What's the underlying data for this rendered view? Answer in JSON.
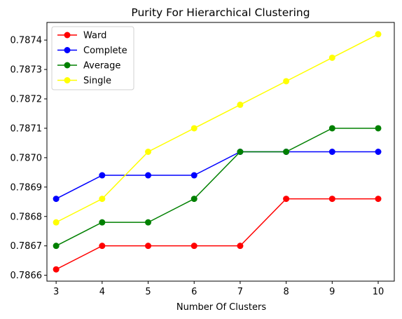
{
  "chart_data": {
    "type": "line",
    "title": "Purity For Hierarchical Clustering",
    "xlabel": "Number Of Clusters",
    "ylabel": "",
    "x": [
      3,
      4,
      5,
      6,
      7,
      8,
      9,
      10
    ],
    "xlim": [
      2.8,
      10.35
    ],
    "ylim": [
      0.78658,
      0.78746
    ],
    "xticks": [
      3,
      4,
      5,
      6,
      7,
      8,
      9,
      10
    ],
    "yticks": [
      0.7866,
      0.7867,
      0.7868,
      0.7869,
      0.787,
      0.7871,
      0.7872,
      0.7873,
      0.7874
    ],
    "ytick_labels": [
      "0.7866",
      "0.7867",
      "0.7868",
      "0.7869",
      "0.7870",
      "0.7871",
      "0.7872",
      "0.7873",
      "0.7874"
    ],
    "grid": false,
    "legend_position": "top-left",
    "series": [
      {
        "name": "Ward",
        "color": "#ff0000",
        "values": [
          0.78662,
          0.7867,
          0.7867,
          0.7867,
          0.7867,
          0.78686,
          0.78686,
          0.78686
        ]
      },
      {
        "name": "Complete",
        "color": "#0000ff",
        "values": [
          0.78686,
          0.78694,
          0.78694,
          0.78694,
          0.78702,
          0.78702,
          0.78702,
          0.78702
        ]
      },
      {
        "name": "Average",
        "color": "#008000",
        "values": [
          0.7867,
          0.78678,
          0.78678,
          0.78686,
          0.78702,
          0.78702,
          0.7871,
          0.7871
        ]
      },
      {
        "name": "Single",
        "color": "#ffff00",
        "values": [
          0.78678,
          0.78686,
          0.78702,
          0.7871,
          0.78718,
          0.78726,
          0.78734,
          0.78742
        ]
      }
    ]
  }
}
